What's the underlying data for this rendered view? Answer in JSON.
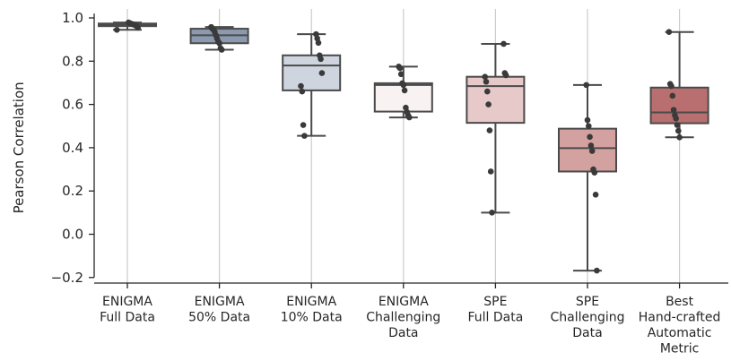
{
  "chart_data": {
    "type": "box",
    "title": "",
    "xlabel": "",
    "ylabel": "Pearson Correlation",
    "ylim": [
      -0.22,
      1.02
    ],
    "yticks": [
      1.0,
      0.8,
      0.6,
      0.4,
      0.2,
      0.0,
      -0.2
    ],
    "ytick_labels": [
      "1.0",
      "0.8",
      "0.6",
      "0.4",
      "0.2",
      "0.0",
      "−0.2"
    ],
    "vertical_grid": true,
    "categories": [
      {
        "label_lines": [
          "ENIGMA",
          "Full Data"
        ],
        "color": "#555a63",
        "box": {
          "q1": 0.962,
          "median": 0.968,
          "q3": 0.974,
          "whisker_low": 0.945,
          "whisker_high": 0.979
        },
        "points": [
          0.945,
          0.955,
          0.962,
          0.965,
          0.968,
          0.97,
          0.972,
          0.974,
          0.976,
          0.979
        ]
      },
      {
        "label_lines": [
          "ENIGMA",
          "50% Data"
        ],
        "color": "#8c9aaf",
        "box": {
          "q1": 0.883,
          "median": 0.92,
          "q3": 0.95,
          "whisker_low": 0.853,
          "whisker_high": 0.958
        },
        "points": [
          0.853,
          0.86,
          0.883,
          0.89,
          0.905,
          0.92,
          0.935,
          0.945,
          0.95,
          0.958
        ]
      },
      {
        "label_lines": [
          "ENIGMA",
          "10% Data"
        ],
        "color": "#cfd5df",
        "box": {
          "q1": 0.665,
          "median": 0.78,
          "q3": 0.827,
          "whisker_low": 0.455,
          "whisker_high": 0.925
        },
        "points": [
          0.455,
          0.505,
          0.66,
          0.685,
          0.745,
          0.81,
          0.827,
          0.885,
          0.905,
          0.925
        ]
      },
      {
        "label_lines": [
          "ENIGMA",
          "Challenging",
          "Data"
        ],
        "color": "#f8f3f2",
        "box": {
          "q1": 0.567,
          "median": 0.69,
          "q3": 0.698,
          "whisker_low": 0.54,
          "whisker_high": 0.775
        },
        "points": [
          0.54,
          0.55,
          0.565,
          0.585,
          0.665,
          0.69,
          0.698,
          0.74,
          0.768,
          0.775
        ]
      },
      {
        "label_lines": [
          "SPE",
          "Full Data"
        ],
        "color": "#e8c9c9",
        "box": {
          "q1": 0.515,
          "median": 0.685,
          "q3": 0.728,
          "whisker_low": 0.1,
          "whisker_high": 0.88
        },
        "points": [
          0.1,
          0.29,
          0.48,
          0.6,
          0.66,
          0.705,
          0.728,
          0.735,
          0.745,
          0.88
        ]
      },
      {
        "label_lines": [
          "SPE",
          "Challenging",
          "Data"
        ],
        "color": "#d4a1a1",
        "box": {
          "q1": 0.29,
          "median": 0.398,
          "q3": 0.488,
          "whisker_low": -0.168,
          "whisker_high": 0.69
        },
        "points": [
          -0.168,
          0.183,
          0.285,
          0.3,
          0.385,
          0.41,
          0.45,
          0.5,
          0.528,
          0.69
        ]
      },
      {
        "label_lines": [
          "Best",
          "Hand-crafted",
          "Automatic",
          "Metric"
        ],
        "color": "#b96f6f",
        "box": {
          "q1": 0.513,
          "median": 0.563,
          "q3": 0.678,
          "whisker_low": 0.448,
          "whisker_high": 0.935
        },
        "points": [
          0.448,
          0.478,
          0.505,
          0.535,
          0.55,
          0.575,
          0.64,
          0.685,
          0.695,
          0.935
        ]
      }
    ]
  }
}
